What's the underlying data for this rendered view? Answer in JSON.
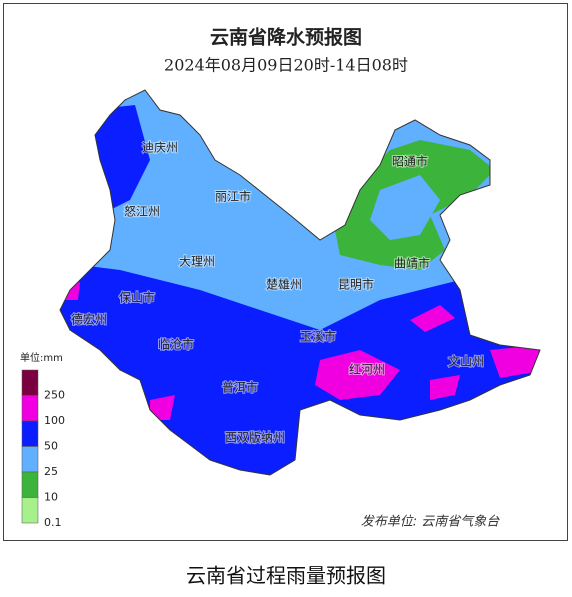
{
  "header": {
    "title": "云南省降水预报图",
    "subtitle": "2024年08月09日20时-14日08时"
  },
  "regions": [
    "迪庆州",
    "怒江州",
    "丽江市",
    "昭通市",
    "大理州",
    "曲靖市",
    "保山市",
    "楚雄州",
    "昆明市",
    "德宏州",
    "玉溪市",
    "临沧市",
    "文山州",
    "红河州",
    "普洱市",
    "西双版纳州"
  ],
  "legend": {
    "unit": "单位:mm",
    "items": [
      {
        "value": 250,
        "color": "#7a0040"
      },
      {
        "value": 100,
        "color": "#f000e0"
      },
      {
        "value": 50,
        "color": "#0a1eff"
      },
      {
        "value": 25,
        "color": "#60b0ff"
      },
      {
        "value": 10,
        "color": "#3cb43c"
      },
      {
        "value": 0.1,
        "color": "#a8f08c"
      }
    ]
  },
  "publisher": "发布单位: 云南省气象台",
  "caption": "云南省过程雨量预报图"
}
